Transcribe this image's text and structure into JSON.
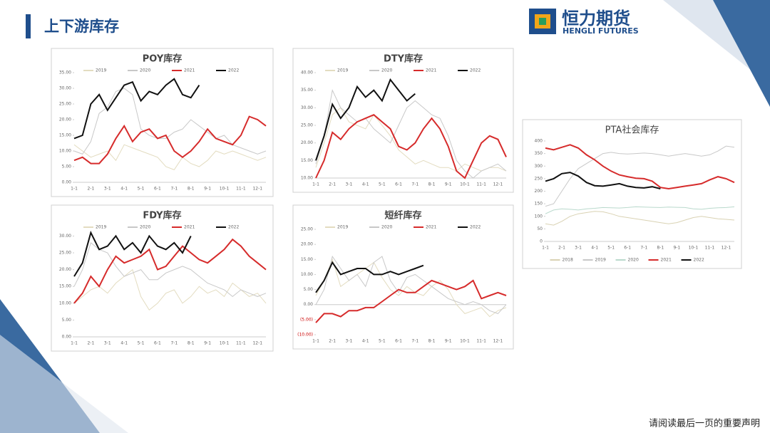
{
  "header": {
    "title": "上下游库存"
  },
  "logo": {
    "name": "恒力期货",
    "subtitle": "HENGLI FUTURES"
  },
  "footer": "请阅读最后一页的重要声明",
  "chart_data": [
    {
      "type": "line",
      "title": "POY库存",
      "legend": "top",
      "categories": [
        "1-1",
        null,
        "2-1",
        null,
        "3-1",
        null,
        "4-1",
        null,
        "5-1",
        null,
        "6-1",
        null,
        "7-1",
        null,
        "8-1",
        null,
        "9-1",
        null,
        "10-1",
        null,
        "11-1",
        null,
        "12-1",
        null
      ],
      "ylim": [
        0,
        35
      ],
      "yticks": [
        {
          "value": 0,
          "label": "0.00"
        },
        {
          "value": 5,
          "label": "5.00"
        },
        {
          "value": 10,
          "label": "10.00"
        },
        {
          "value": 15,
          "label": "15.00"
        },
        {
          "value": 20,
          "label": "20.00"
        },
        {
          "value": 25,
          "label": "25.00"
        },
        {
          "value": 30,
          "label": "30.00"
        },
        {
          "value": 35,
          "label": "35.00"
        }
      ],
      "series": [
        {
          "name": "2019",
          "color": "#e3dcc0",
          "values": [
            12,
            10,
            8,
            9,
            10,
            7,
            12,
            11,
            10,
            9,
            8,
            5,
            4,
            8,
            6,
            5,
            7,
            10,
            9,
            10,
            9,
            8,
            7,
            8
          ]
        },
        {
          "name": "2020",
          "color": "#c8c8c8",
          "values": [
            10,
            9,
            13,
            22,
            24,
            29,
            30,
            28,
            17,
            15,
            14,
            14,
            16,
            17,
            20,
            18,
            16,
            14,
            15,
            12,
            11,
            10,
            9,
            10
          ]
        },
        {
          "name": "2021",
          "color": "#d62b2b",
          "values": [
            7,
            8,
            6,
            6,
            9,
            14,
            18,
            13,
            16,
            17,
            14,
            15,
            10,
            8,
            10,
            13,
            17,
            14,
            13,
            12,
            15,
            21,
            20,
            18
          ]
        },
        {
          "name": "2022",
          "color": "#111111",
          "values": [
            14,
            15,
            25,
            28,
            23,
            27,
            31,
            32,
            26,
            29,
            28,
            31,
            33,
            28,
            27,
            31,
            null,
            null,
            null,
            null,
            null,
            null,
            null,
            null
          ]
        }
      ]
    },
    {
      "type": "line",
      "title": "DTY库存",
      "legend": "top",
      "categories": [
        "1-1",
        null,
        "2-1",
        null,
        "3-1",
        null,
        "4-1",
        null,
        "5-1",
        null,
        "6-1",
        null,
        "7-1",
        null,
        "8-1",
        null,
        "9-1",
        null,
        "10-1",
        null,
        "11-1",
        null,
        "12-1",
        null
      ],
      "ylim": [
        10,
        40
      ],
      "yticks": [
        {
          "value": 10,
          "label": "10.00"
        },
        {
          "value": 15,
          "label": "15.00"
        },
        {
          "value": 20,
          "label": "20.00"
        },
        {
          "value": 25,
          "label": "25.00"
        },
        {
          "value": 30,
          "label": "30.00"
        },
        {
          "value": 35,
          "label": "35.00"
        },
        {
          "value": 40,
          "label": "40.00"
        }
      ],
      "series": [
        {
          "name": "2019",
          "color": "#e3dcc0",
          "values": [
            13,
            20,
            28,
            30,
            26,
            25,
            24,
            28,
            25,
            22,
            18,
            16,
            14,
            15,
            14,
            13,
            13,
            12,
            14,
            13,
            12,
            13,
            13,
            12
          ]
        },
        {
          "name": "2020",
          "color": "#c8c8c8",
          "values": [
            14,
            22,
            35,
            30,
            28,
            26,
            27,
            24,
            22,
            20,
            25,
            30,
            32,
            30,
            28,
            27,
            22,
            15,
            12,
            10,
            12,
            13,
            14,
            12
          ]
        },
        {
          "name": "2021",
          "color": "#d62b2b",
          "values": [
            10,
            15,
            23,
            21,
            24,
            26,
            27,
            28,
            26,
            24,
            19,
            18,
            20,
            24,
            27,
            24,
            19,
            12,
            10,
            15,
            20,
            22,
            21,
            16
          ]
        },
        {
          "name": "2022",
          "color": "#111111",
          "values": [
            15,
            22,
            31,
            27,
            30,
            36,
            33,
            35,
            32,
            38,
            35,
            32,
            34,
            null,
            null,
            null,
            null,
            null,
            null,
            null,
            null,
            null,
            null,
            null
          ]
        }
      ]
    },
    {
      "type": "line",
      "title": "FDY库存",
      "legend": "top",
      "categories": [
        "1-1",
        null,
        "2-1",
        null,
        "3-1",
        null,
        "4-1",
        null,
        "5-1",
        null,
        "6-1",
        null,
        "7-1",
        null,
        "8-1",
        null,
        "9-1",
        null,
        "10-1",
        null,
        "11-1",
        null,
        "12-1",
        null
      ],
      "ylim": [
        0,
        32
      ],
      "yticks": [
        {
          "value": 0,
          "label": "0.00"
        },
        {
          "value": 5,
          "label": "5.00"
        },
        {
          "value": 10,
          "label": "10.00"
        },
        {
          "value": 15,
          "label": "15.00"
        },
        {
          "value": 20,
          "label": "20.00"
        },
        {
          "value": 25,
          "label": "25.00"
        },
        {
          "value": 30,
          "label": "30.00"
        }
      ],
      "series": [
        {
          "name": "2019",
          "color": "#e3dcc0",
          "values": [
            10,
            12,
            14,
            15,
            13,
            16,
            18,
            20,
            12,
            8,
            10,
            13,
            14,
            10,
            12,
            15,
            13,
            14,
            12,
            16,
            14,
            12,
            13,
            10
          ]
        },
        {
          "name": "2020",
          "color": "#c8c8c8",
          "values": [
            15,
            20,
            28,
            26,
            25,
            21,
            18,
            19,
            20,
            17,
            17,
            19,
            20,
            21,
            20,
            18,
            16,
            15,
            14,
            12,
            14,
            13,
            12,
            13
          ]
        },
        {
          "name": "2021",
          "color": "#d62b2b",
          "values": [
            10,
            13,
            18,
            15,
            20,
            24,
            22,
            23,
            24,
            26,
            20,
            21,
            24,
            27,
            25,
            23,
            22,
            24,
            26,
            29,
            27,
            24,
            22,
            20
          ]
        },
        {
          "name": "2022",
          "color": "#111111",
          "values": [
            18,
            22,
            31,
            26,
            27,
            30,
            26,
            28,
            25,
            30,
            27,
            26,
            28,
            25,
            30,
            null,
            null,
            null,
            null,
            null,
            null,
            null,
            null,
            null
          ]
        }
      ]
    },
    {
      "type": "line",
      "title": "短纤库存",
      "legend": "top",
      "categories": [
        "1-1",
        null,
        "2-1",
        null,
        "3-1",
        null,
        "4-1",
        null,
        "5-1",
        null,
        "6-1",
        null,
        "7-1",
        null,
        "8-1",
        null,
        "9-1",
        null,
        "10-1",
        null,
        "11-1",
        null,
        "12-1",
        null
      ],
      "ylim": [
        -10,
        25
      ],
      "yticks": [
        {
          "value": -10,
          "label": "(10.00)"
        },
        {
          "value": -5,
          "label": "(5.00)"
        },
        {
          "value": 0,
          "label": "0.00"
        },
        {
          "value": 5,
          "label": "5.00"
        },
        {
          "value": 10,
          "label": "10.00"
        },
        {
          "value": 15,
          "label": "15.00"
        },
        {
          "value": 20,
          "label": "20.00"
        },
        {
          "value": 25,
          "label": "25.00"
        }
      ],
      "series": [
        {
          "name": "2019",
          "color": "#e3dcc0",
          "values": [
            3,
            8,
            15,
            6,
            8,
            10,
            12,
            14,
            9,
            5,
            3,
            6,
            4,
            3,
            6,
            8,
            5,
            0,
            -3,
            -2,
            -1,
            -4,
            -2,
            -1
          ]
        },
        {
          "name": "2020",
          "color": "#c8c8c8",
          "values": [
            0,
            5,
            16,
            12,
            8,
            10,
            6,
            14,
            16,
            8,
            4,
            9,
            10,
            8,
            6,
            4,
            2,
            1,
            0,
            1,
            0,
            -2,
            -3,
            0
          ]
        },
        {
          "name": "2021",
          "color": "#d62b2b",
          "values": [
            -6,
            -3,
            -3,
            -4,
            -2,
            -2,
            -1,
            -1,
            1,
            3,
            5,
            4,
            4,
            6,
            8,
            7,
            6,
            5,
            6,
            8,
            2,
            3,
            4,
            3
          ]
        },
        {
          "name": "2022",
          "color": "#111111",
          "values": [
            4,
            8,
            14,
            10,
            11,
            12,
            12,
            10,
            10,
            11,
            10,
            11,
            12,
            13,
            null,
            null,
            null,
            null,
            null,
            null,
            null,
            null,
            null,
            null
          ]
        }
      ]
    },
    {
      "type": "line",
      "title": "PTA社会库存",
      "legend": "bottom",
      "categories": [
        "1-1",
        null,
        "2-1",
        null,
        "3-1",
        null,
        "4-1",
        null,
        "5-1",
        null,
        "6-1",
        null,
        "7-1",
        null,
        "8-1",
        null,
        "9-1",
        null,
        "10-1",
        null,
        "11-1",
        null,
        "12-1",
        null
      ],
      "ylim": [
        0,
        400
      ],
      "yticks": [
        0,
        50,
        100,
        150,
        200,
        250,
        300,
        350,
        400
      ],
      "series": [
        {
          "name": "2018",
          "color": "#d9d2b3",
          "values": [
            70,
            65,
            80,
            100,
            110,
            115,
            120,
            118,
            110,
            100,
            95,
            90,
            85,
            80,
            75,
            70,
            75,
            85,
            95,
            100,
            95,
            90,
            88,
            85
          ]
        },
        {
          "name": "2019",
          "color": "#c8c8c8",
          "values": [
            140,
            150,
            200,
            250,
            290,
            310,
            330,
            350,
            355,
            350,
            348,
            350,
            352,
            350,
            345,
            340,
            345,
            350,
            345,
            340,
            345,
            360,
            380,
            375
          ]
        },
        {
          "name": "2020",
          "color": "#b9d9cc",
          "values": [
            110,
            125,
            130,
            128,
            125,
            130,
            132,
            135,
            134,
            133,
            135,
            138,
            137,
            136,
            135,
            137,
            136,
            135,
            130,
            128,
            132,
            134,
            135,
            138
          ]
        },
        {
          "name": "2021",
          "color": "#d62b2b",
          "values": [
            372,
            365,
            375,
            385,
            372,
            345,
            325,
            300,
            280,
            265,
            258,
            252,
            250,
            240,
            215,
            210,
            215,
            220,
            225,
            230,
            245,
            258,
            250,
            235
          ]
        },
        {
          "name": "2022",
          "color": "#111111",
          "values": [
            240,
            250,
            270,
            275,
            260,
            235,
            222,
            220,
            225,
            230,
            220,
            215,
            213,
            218,
            210,
            null,
            null,
            null,
            null,
            null,
            null,
            null,
            null,
            null
          ]
        }
      ]
    }
  ]
}
